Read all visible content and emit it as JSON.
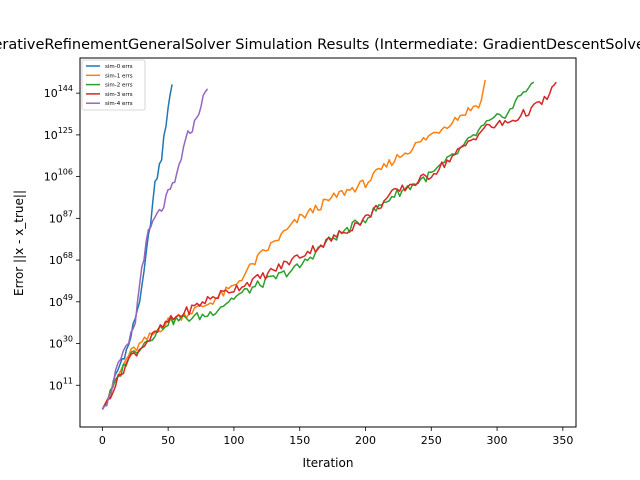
{
  "chart_data": {
    "type": "line",
    "title": "IterativeRefinementGeneralSolver Simulation Results (Intermediate: GradientDescentSolver)",
    "xlabel": "Iteration",
    "ylabel": "Error ||x - x_true||",
    "xlim": [
      -17,
      360
    ],
    "ylim": [
      -8,
      160
    ],
    "y_scale": "log",
    "x_ticks": [
      0,
      50,
      100,
      150,
      200,
      250,
      300,
      350
    ],
    "y_ticks": [
      11,
      30,
      49,
      68,
      87,
      106,
      125,
      144
    ],
    "grid": false,
    "legend_position": "top-left",
    "series": [
      {
        "name": "sim-0 errs",
        "color": "#1f77b4",
        "points": [
          [
            0,
            0
          ],
          [
            5,
            5
          ],
          [
            10,
            15
          ],
          [
            15,
            23
          ],
          [
            20,
            29
          ],
          [
            25,
            42
          ],
          [
            30,
            54
          ],
          [
            35,
            78
          ],
          [
            40,
            102
          ],
          [
            45,
            115
          ],
          [
            50,
            138
          ],
          [
            53,
            148
          ]
        ]
      },
      {
        "name": "sim-1 errs",
        "color": "#ff7f0e",
        "points": [
          [
            0,
            0
          ],
          [
            20,
            25
          ],
          [
            50,
            40
          ],
          [
            80,
            48
          ],
          [
            100,
            56
          ],
          [
            120,
            70
          ],
          [
            150,
            87
          ],
          [
            180,
            98
          ],
          [
            200,
            103
          ],
          [
            220,
            113
          ],
          [
            250,
            125
          ],
          [
            270,
            133
          ],
          [
            288,
            140
          ],
          [
            291,
            150
          ]
        ]
      },
      {
        "name": "sim-2 errs",
        "color": "#2ca02c",
        "points": [
          [
            0,
            0
          ],
          [
            20,
            24
          ],
          [
            50,
            40
          ],
          [
            80,
            43
          ],
          [
            100,
            51
          ],
          [
            120,
            57
          ],
          [
            150,
            65
          ],
          [
            170,
            76
          ],
          [
            200,
            87
          ],
          [
            220,
            97
          ],
          [
            250,
            107
          ],
          [
            270,
            117
          ],
          [
            290,
            129
          ],
          [
            310,
            136
          ],
          [
            320,
            145
          ],
          [
            328,
            149
          ]
        ]
      },
      {
        "name": "sim-3 errs",
        "color": "#d62728",
        "points": [
          [
            0,
            0
          ],
          [
            20,
            23
          ],
          [
            50,
            40
          ],
          [
            80,
            50
          ],
          [
            100,
            55
          ],
          [
            120,
            60
          ],
          [
            150,
            70
          ],
          [
            170,
            76
          ],
          [
            200,
            87
          ],
          [
            220,
            98
          ],
          [
            250,
            107
          ],
          [
            270,
            117
          ],
          [
            290,
            128
          ],
          [
            310,
            131
          ],
          [
            330,
            138
          ],
          [
            340,
            143
          ],
          [
            345,
            149
          ]
        ]
      },
      {
        "name": "sim-4 errs",
        "color": "#9467bd",
        "points": [
          [
            0,
            0
          ],
          [
            5,
            5
          ],
          [
            10,
            17
          ],
          [
            20,
            30
          ],
          [
            25,
            40
          ],
          [
            30,
            65
          ],
          [
            35,
            80
          ],
          [
            40,
            87
          ],
          [
            45,
            91
          ],
          [
            50,
            98
          ],
          [
            55,
            103
          ],
          [
            60,
            115
          ],
          [
            65,
            125
          ],
          [
            70,
            130
          ],
          [
            75,
            139
          ],
          [
            80,
            146
          ]
        ]
      }
    ]
  }
}
